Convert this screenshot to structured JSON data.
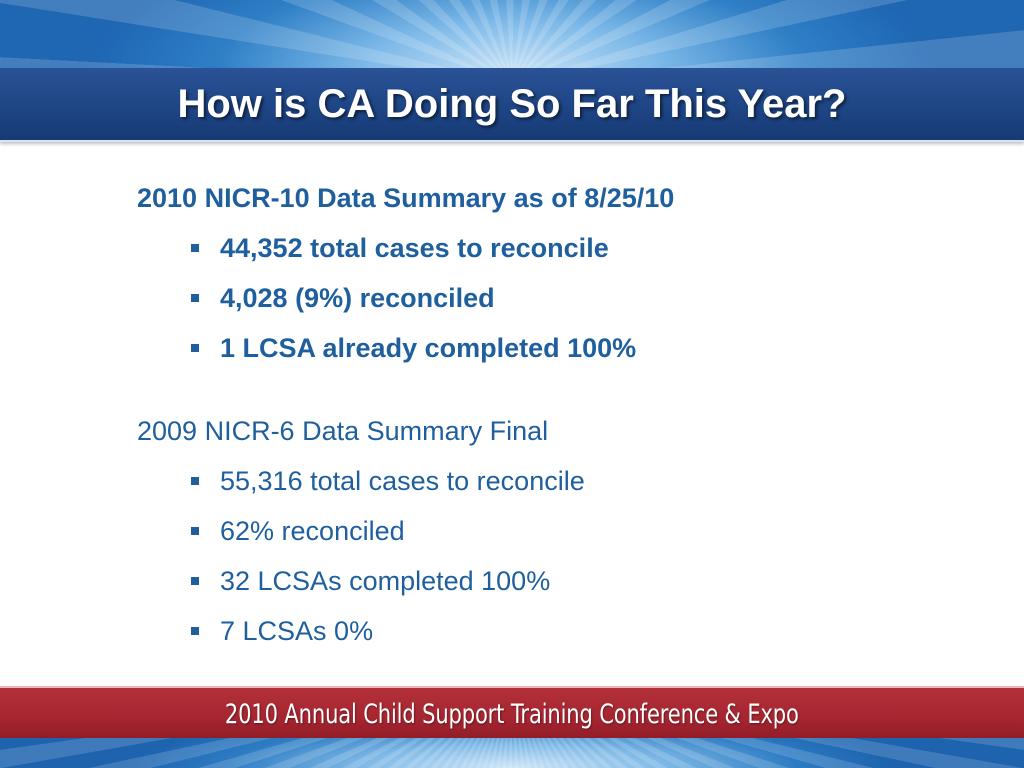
{
  "slide": {
    "title": "How is CA Doing So Far This Year?",
    "section1": {
      "heading": "2010 NICR-10 Data Summary as of 8/25/10",
      "bullets": [
        "44,352 total cases to reconcile",
        "4,028 (9%) reconciled",
        "1 LCSA already completed 100%"
      ]
    },
    "section2": {
      "heading": "2009 NICR-6 Data Summary Final",
      "bullets": [
        "55,316 total cases to reconcile",
        "62% reconciled",
        "32 LCSAs completed 100%",
        "7 LCSAs 0%"
      ]
    },
    "footer": "2010 Annual Child Support Training Conference & Expo"
  },
  "colors": {
    "text_blue": "#1f5f9e",
    "title_band": "#1e4585",
    "footer_band": "#a52530"
  }
}
